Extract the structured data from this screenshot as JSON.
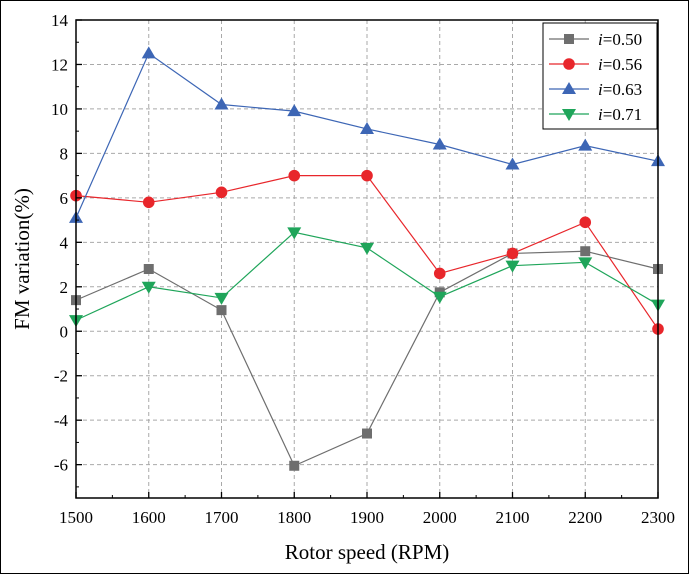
{
  "chart_data": {
    "type": "line",
    "title": "",
    "xlabel": "Rotor speed (RPM)",
    "ylabel": "FM variation(%)",
    "x": [
      1500,
      1600,
      1700,
      1800,
      1900,
      2000,
      2100,
      2200,
      2300
    ],
    "x_ticks": [
      "1500",
      "1600",
      "1700",
      "1800",
      "1900",
      "2000",
      "2100",
      "2200",
      "2300"
    ],
    "xlim": [
      1500,
      2300
    ],
    "y_ticks": [
      "-6",
      "-4",
      "-2",
      "0",
      "2",
      "4",
      "6",
      "8",
      "10",
      "12",
      "14"
    ],
    "ylim": [
      -7.5,
      14
    ],
    "grid": true,
    "legend_position": "top-right",
    "series": [
      {
        "name_italic": "i",
        "name_suffix": "=0.50",
        "color": "#6e6e6e",
        "marker": "square",
        "values": [
          1.4,
          2.8,
          0.95,
          -6.05,
          -4.6,
          1.75,
          3.5,
          3.6,
          2.8
        ]
      },
      {
        "name_italic": "i",
        "name_suffix": "=0.56",
        "color": "#e8262b",
        "marker": "circle",
        "values": [
          6.1,
          5.8,
          6.25,
          7.0,
          7.0,
          2.6,
          3.5,
          4.9,
          0.1
        ]
      },
      {
        "name_italic": "i",
        "name_suffix": "=0.63",
        "color": "#3d66b5",
        "marker": "triangle-up",
        "values": [
          5.1,
          12.5,
          10.2,
          9.9,
          9.1,
          8.4,
          7.5,
          8.35,
          7.65
        ]
      },
      {
        "name_italic": "i",
        "name_suffix": "=0.71",
        "color": "#1fa55a",
        "marker": "triangle-down",
        "values": [
          0.5,
          2.0,
          1.5,
          4.45,
          3.75,
          1.55,
          2.95,
          3.1,
          1.2
        ]
      }
    ]
  }
}
